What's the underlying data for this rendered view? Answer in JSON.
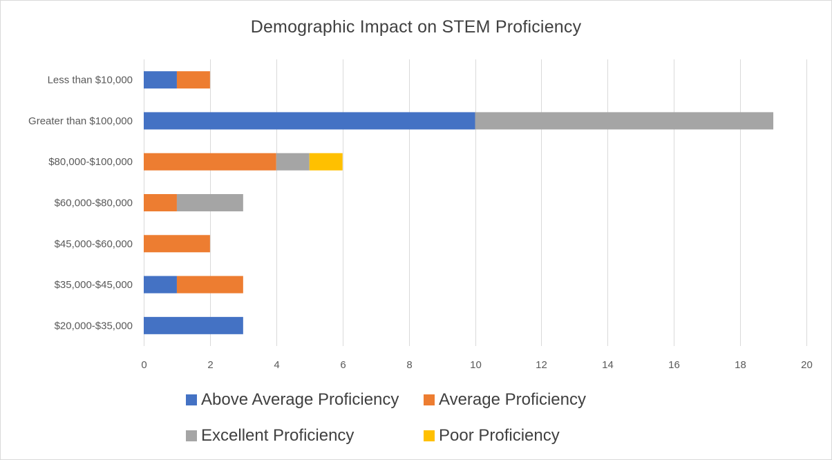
{
  "chart_data": {
    "type": "bar",
    "orientation": "horizontal",
    "stacked": true,
    "title": "Demographic Impact on STEM Proficiency",
    "categories": [
      "Less than $10,000",
      "Greater than $100,000",
      "$80,000-$100,000",
      "$60,000-$80,000",
      "$45,000-$60,000",
      "$35,000-$45,000",
      "$20,000-$35,000"
    ],
    "series": [
      {
        "name": "Above Average Proficiency",
        "color": "#4472c4",
        "values": [
          1,
          10,
          0,
          0,
          0,
          1,
          3
        ]
      },
      {
        "name": "Average Proficiency",
        "color": "#ed7d31",
        "values": [
          1,
          0,
          4,
          1,
          2,
          2,
          0
        ]
      },
      {
        "name": "Excellent Proficiency",
        "color": "#a5a5a5",
        "values": [
          0,
          9,
          1,
          2,
          0,
          0,
          0
        ]
      },
      {
        "name": "Poor Proficiency",
        "color": "#ffc000",
        "values": [
          0,
          0,
          1,
          0,
          0,
          0,
          0
        ]
      }
    ],
    "xlim": [
      0,
      20
    ],
    "xticks": [
      "0",
      "2",
      "4",
      "6",
      "8",
      "10",
      "12",
      "14",
      "16",
      "18",
      "20"
    ],
    "grid": "vertical",
    "legend_position": "bottom"
  }
}
